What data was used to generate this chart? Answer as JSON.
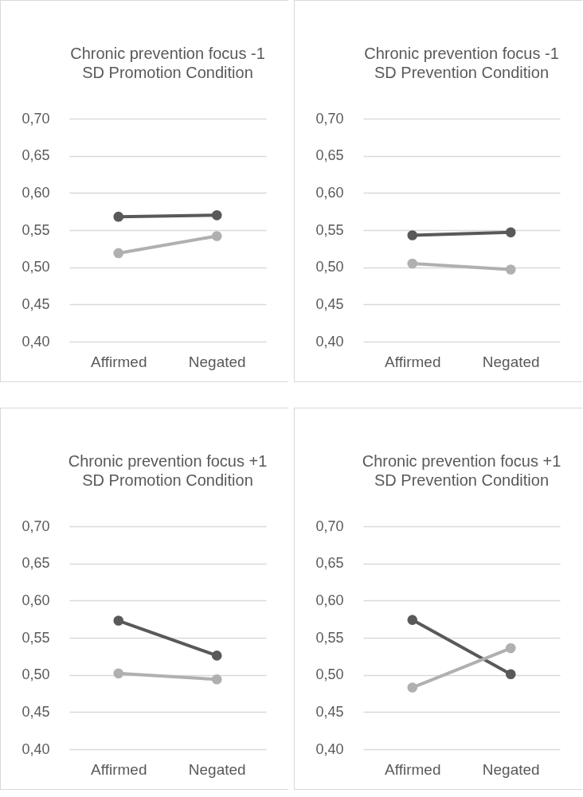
{
  "chart_data": [
    {
      "type": "line",
      "title": "Chronic prevention focus -1 SD Promotion Condition",
      "categories": [
        "Affirmed",
        "Negated"
      ],
      "series": [
        {
          "color": "#595959",
          "values": [
            0.568,
            0.57
          ]
        },
        {
          "color": "#b0b0b0",
          "values": [
            0.519,
            0.542
          ]
        }
      ],
      "ylim": [
        0.4,
        0.7
      ],
      "yticks": [
        {
          "value": 0.4,
          "label": "0,40"
        },
        {
          "value": 0.45,
          "label": "0,45"
        },
        {
          "value": 0.5,
          "label": "0,50"
        },
        {
          "value": 0.55,
          "label": "0,55"
        },
        {
          "value": 0.6,
          "label": "0,60"
        },
        {
          "value": 0.65,
          "label": "0,65"
        },
        {
          "value": 0.7,
          "label": "0,70"
        }
      ],
      "grid": "y",
      "marker": "circle"
    },
    {
      "type": "line",
      "title": "Chronic prevention focus -1 SD Prevention Condition",
      "categories": [
        "Affirmed",
        "Negated"
      ],
      "series": [
        {
          "color": "#595959",
          "values": [
            0.543,
            0.547
          ]
        },
        {
          "color": "#b0b0b0",
          "values": [
            0.505,
            0.497
          ]
        }
      ],
      "ylim": [
        0.4,
        0.7
      ],
      "yticks": [
        {
          "value": 0.4,
          "label": "0,40"
        },
        {
          "value": 0.45,
          "label": "0,45"
        },
        {
          "value": 0.5,
          "label": "0,50"
        },
        {
          "value": 0.55,
          "label": "0,55"
        },
        {
          "value": 0.6,
          "label": "0,60"
        },
        {
          "value": 0.65,
          "label": "0,65"
        },
        {
          "value": 0.7,
          "label": "0,70"
        }
      ],
      "grid": "y",
      "marker": "circle"
    },
    {
      "type": "line",
      "title": "Chronic prevention focus +1 SD Promotion Condition",
      "categories": [
        "Affirmed",
        "Negated"
      ],
      "series": [
        {
          "color": "#595959",
          "values": [
            0.573,
            0.526
          ]
        },
        {
          "color": "#b0b0b0",
          "values": [
            0.502,
            0.494
          ]
        }
      ],
      "ylim": [
        0.4,
        0.7
      ],
      "yticks": [
        {
          "value": 0.4,
          "label": "0,40"
        },
        {
          "value": 0.45,
          "label": "0,45"
        },
        {
          "value": 0.5,
          "label": "0,50"
        },
        {
          "value": 0.55,
          "label": "0,55"
        },
        {
          "value": 0.6,
          "label": "0,60"
        },
        {
          "value": 0.65,
          "label": "0,65"
        },
        {
          "value": 0.7,
          "label": "0,70"
        }
      ],
      "grid": "y",
      "marker": "circle"
    },
    {
      "type": "line",
      "title": "Chronic prevention focus +1 SD Prevention Condition",
      "categories": [
        "Affirmed",
        "Negated"
      ],
      "series": [
        {
          "color": "#595959",
          "values": [
            0.574,
            0.501
          ]
        },
        {
          "color": "#b0b0b0",
          "values": [
            0.483,
            0.536
          ]
        }
      ],
      "ylim": [
        0.4,
        0.7
      ],
      "yticks": [
        {
          "value": 0.4,
          "label": "0,40"
        },
        {
          "value": 0.45,
          "label": "0,45"
        },
        {
          "value": 0.5,
          "label": "0,50"
        },
        {
          "value": 0.55,
          "label": "0,55"
        },
        {
          "value": 0.6,
          "label": "0,60"
        },
        {
          "value": 0.65,
          "label": "0,65"
        },
        {
          "value": 0.7,
          "label": "0,70"
        }
      ],
      "grid": "y",
      "marker": "circle"
    }
  ]
}
